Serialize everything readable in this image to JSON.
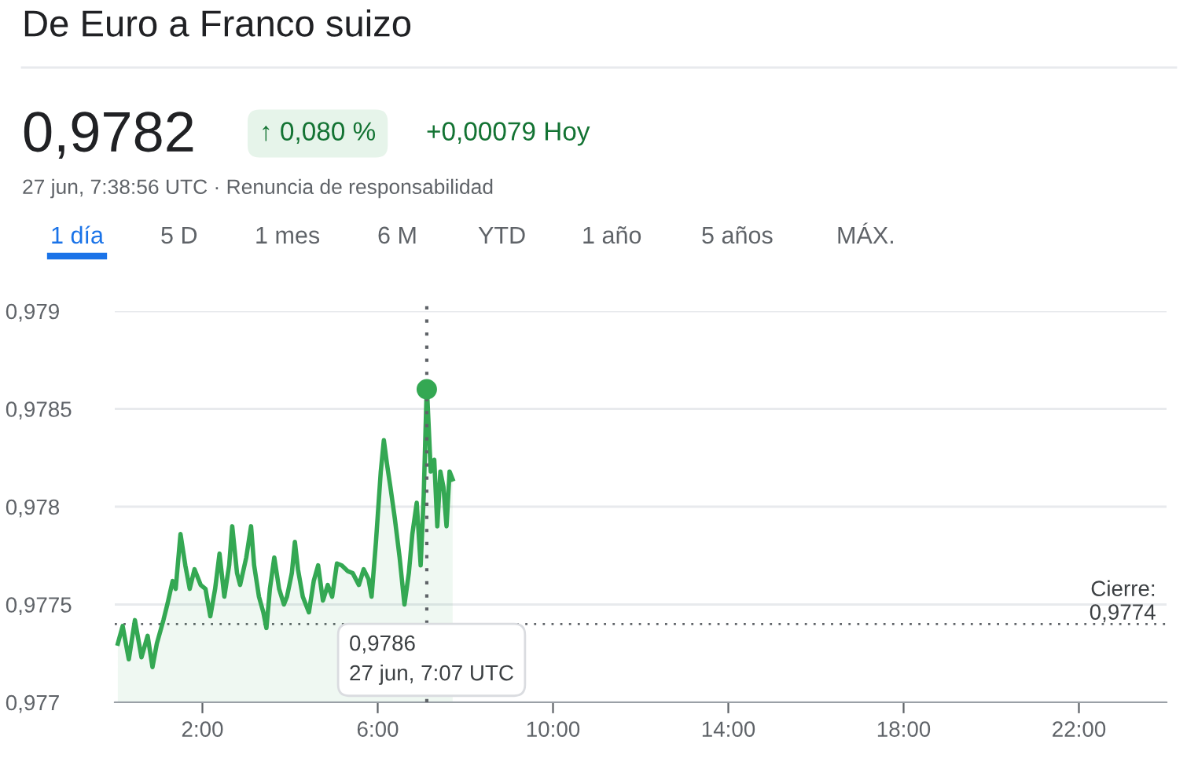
{
  "chart_data": {
    "type": "area",
    "title": "De Euro a Franco suizo",
    "x": [
      0.07,
      0.18,
      0.32,
      0.46,
      0.61,
      0.75,
      0.86,
      0.96,
      1.11,
      1.21,
      1.32,
      1.39,
      1.5,
      1.61,
      1.71,
      1.82,
      1.96,
      2.07,
      2.18,
      2.29,
      2.39,
      2.5,
      2.61,
      2.68,
      2.79,
      2.86,
      3.0,
      3.11,
      3.18,
      3.29,
      3.39,
      3.46,
      3.54,
      3.64,
      3.75,
      3.86,
      3.93,
      4.04,
      4.11,
      4.18,
      4.29,
      4.43,
      4.54,
      4.64,
      4.75,
      4.86,
      4.96,
      5.07,
      5.18,
      5.32,
      5.43,
      5.57,
      5.68,
      5.79,
      5.86,
      5.96,
      6.07,
      6.14,
      6.21,
      6.29,
      6.39,
      6.5,
      6.61,
      6.71,
      6.79,
      6.89,
      6.98,
      7.05,
      7.12,
      7.21,
      7.29,
      7.36,
      7.43,
      7.5,
      7.57,
      7.64,
      7.71
    ],
    "series": [
      {
        "color": "#34a853",
        "values": [
          0.9773,
          0.97739,
          0.97722,
          0.97742,
          0.97723,
          0.97734,
          0.97718,
          0.9773,
          0.97742,
          0.97751,
          0.97762,
          0.97758,
          0.97786,
          0.9777,
          0.97758,
          0.97768,
          0.9776,
          0.97758,
          0.97744,
          0.97758,
          0.97776,
          0.97754,
          0.9777,
          0.9779,
          0.97766,
          0.9776,
          0.97774,
          0.9779,
          0.9777,
          0.97754,
          0.97746,
          0.97738,
          0.97758,
          0.97774,
          0.97758,
          0.9775,
          0.97754,
          0.97766,
          0.97782,
          0.97768,
          0.97754,
          0.97746,
          0.97762,
          0.9777,
          0.97752,
          0.9776,
          0.97754,
          0.97771,
          0.9777,
          0.97767,
          0.97766,
          0.9776,
          0.97768,
          0.97763,
          0.97754,
          0.97782,
          0.97818,
          0.97834,
          0.97822,
          0.9781,
          0.97794,
          0.97774,
          0.9775,
          0.97766,
          0.97786,
          0.97802,
          0.9777,
          0.97806,
          0.97862,
          0.97818,
          0.97824,
          0.9779,
          0.97818,
          0.9781,
          0.9779,
          0.97818,
          0.97814
        ]
      },
      {
        "type": "scatter",
        "color": "#34a853",
        "x": [
          7.12
        ],
        "values": [
          0.9786
        ]
      }
    ],
    "xlim": [
      0,
      24
    ],
    "xticks": [
      {
        "value": 2,
        "label": "2:00"
      },
      {
        "value": 6,
        "label": "6:00"
      },
      {
        "value": 10,
        "label": "10:00"
      },
      {
        "value": 14,
        "label": "14:00"
      },
      {
        "value": 18,
        "label": "18:00"
      },
      {
        "value": 22,
        "label": "22:00"
      }
    ],
    "ylim": [
      0.977,
      0.979
    ],
    "yticks": [
      {
        "value": 0.977,
        "label": "0,977"
      },
      {
        "value": 0.9775,
        "label": "0,9775"
      },
      {
        "value": 0.978,
        "label": "0,978"
      },
      {
        "value": 0.9785,
        "label": "0,9785"
      },
      {
        "value": 0.979,
        "label": "0,979"
      }
    ],
    "grid": "y",
    "ref_lines": [
      {
        "axis": "y",
        "value": 0.9774,
        "label": "Cierre:\n0,9774",
        "color": "#5f6368",
        "line_style": "dotted"
      },
      {
        "axis": "x",
        "value": 7.12,
        "color": "#5f6368",
        "line_style": "dotted"
      }
    ],
    "annotations": [
      "0,9782",
      "↑ 0,080 %",
      "+0,00079 Hoy",
      "27 jun, 7:38:56 UTC · Renuncia de responsabilidad",
      "1 día",
      "5 D",
      "1 mes",
      "6 M",
      "YTD",
      "1 año",
      "5 años",
      "MÁX.",
      "0,9786\n27 jun, 7:07 UTC"
    ]
  }
}
